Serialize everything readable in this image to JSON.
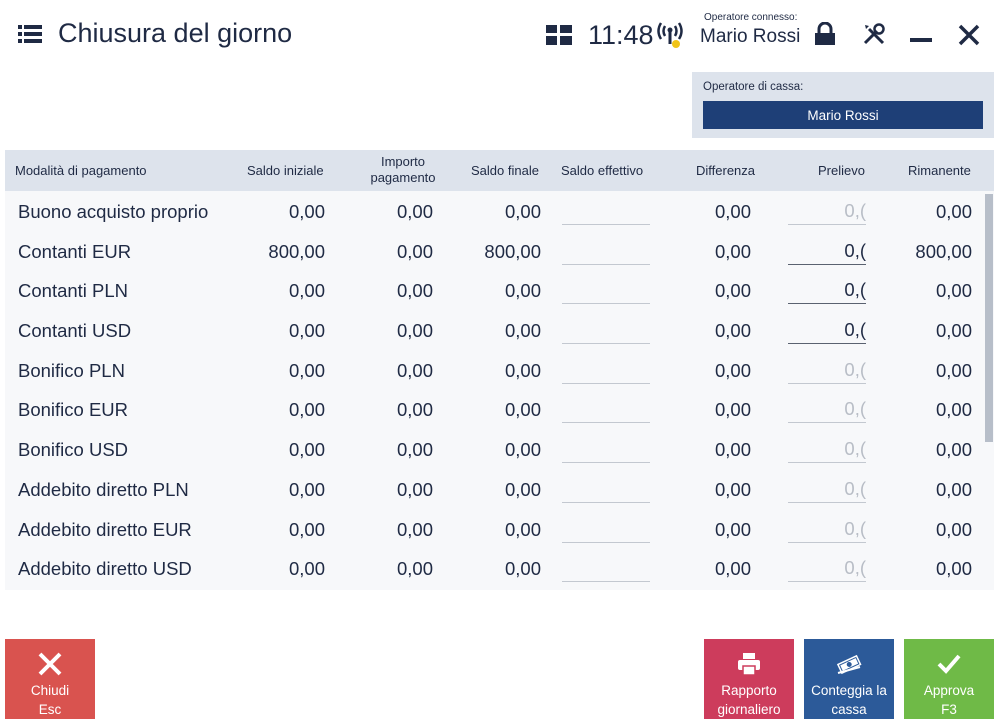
{
  "header": {
    "title": "Chiusura del giorno",
    "clock": "11:48",
    "operator_label": "Operatore connesso:",
    "operator_name": "Mario Rossi",
    "icons": [
      "menu-icon",
      "tiles-icon",
      "signal-icon",
      "lock-icon",
      "tools-icon",
      "minimize-icon",
      "close-icon"
    ]
  },
  "cashier": {
    "label": "Operatore di cassa:",
    "selected": "Mario Rossi"
  },
  "table": {
    "columns": {
      "method": "Modalità di pagamento",
      "saldo_iniziale": "Saldo iniziale",
      "importo_1": "Importo",
      "importo_2": "pagamento",
      "saldo_finale": "Saldo finale",
      "saldo_effettivo": "Saldo effettivo",
      "differenza": "Differenza",
      "prelievo": "Prelievo",
      "rimanente": "Rimanente"
    },
    "rows": [
      {
        "name": "Buono acquisto proprio",
        "saldo_iniziale": "0,00",
        "importo": "0,00",
        "saldo_finale": "0,00",
        "differenza": "0,00",
        "prelievo": "0,(",
        "rimanente": "0,00"
      },
      {
        "name": "Contanti EUR",
        "saldo_iniziale": "800,00",
        "importo": "0,00",
        "saldo_finale": "800,00",
        "differenza": "0,00",
        "prelievo": "0,(",
        "rimanente": "800,00"
      },
      {
        "name": "Contanti PLN",
        "saldo_iniziale": "0,00",
        "importo": "0,00",
        "saldo_finale": "0,00",
        "differenza": "0,00",
        "prelievo": "0,(",
        "rimanente": "0,00"
      },
      {
        "name": "Contanti USD",
        "saldo_iniziale": "0,00",
        "importo": "0,00",
        "saldo_finale": "0,00",
        "differenza": "0,00",
        "prelievo": "0,(",
        "rimanente": "0,00"
      },
      {
        "name": "Bonifico PLN",
        "saldo_iniziale": "0,00",
        "importo": "0,00",
        "saldo_finale": "0,00",
        "differenza": "0,00",
        "prelievo": "0,(",
        "rimanente": "0,00"
      },
      {
        "name": "Bonifico EUR",
        "saldo_iniziale": "0,00",
        "importo": "0,00",
        "saldo_finale": "0,00",
        "differenza": "0,00",
        "prelievo": "0,(",
        "rimanente": "0,00"
      },
      {
        "name": "Bonifico USD",
        "saldo_iniziale": "0,00",
        "importo": "0,00",
        "saldo_finale": "0,00",
        "differenza": "0,00",
        "prelievo": "0,(",
        "rimanente": "0,00"
      },
      {
        "name": "Addebito diretto PLN",
        "saldo_iniziale": "0,00",
        "importo": "0,00",
        "saldo_finale": "0,00",
        "differenza": "0,00",
        "prelievo": "0,(",
        "rimanente": "0,00"
      },
      {
        "name": "Addebito diretto EUR",
        "saldo_iniziale": "0,00",
        "importo": "0,00",
        "saldo_finale": "0,00",
        "differenza": "0,00",
        "prelievo": "0,(",
        "rimanente": "0,00"
      },
      {
        "name": "Addebito diretto USD",
        "saldo_iniziale": "0,00",
        "importo": "0,00",
        "saldo_finale": "0,00",
        "differenza": "0,00",
        "prelievo": "0,(",
        "rimanente": "0,00"
      }
    ]
  },
  "buttons": {
    "close": {
      "line1": "Chiudi",
      "line2": "Esc",
      "icon": "close-x-icon"
    },
    "report": {
      "line1": "Rapporto",
      "line2": "giornaliero",
      "icon": "printer-icon"
    },
    "count": {
      "line1": "Conteggia la",
      "line2": "cassa",
      "icon": "cash-icon"
    },
    "approve": {
      "line1": "Approva",
      "line2": "F3",
      "icon": "checkmark-icon"
    }
  },
  "colors": {
    "accent_blue": "#1e3f77",
    "close_red": "#d9534f",
    "report_pink": "#cd3c5c",
    "count_blue": "#2c5a99",
    "approve_green": "#6fba47",
    "signal_dot": "#f0c419"
  }
}
